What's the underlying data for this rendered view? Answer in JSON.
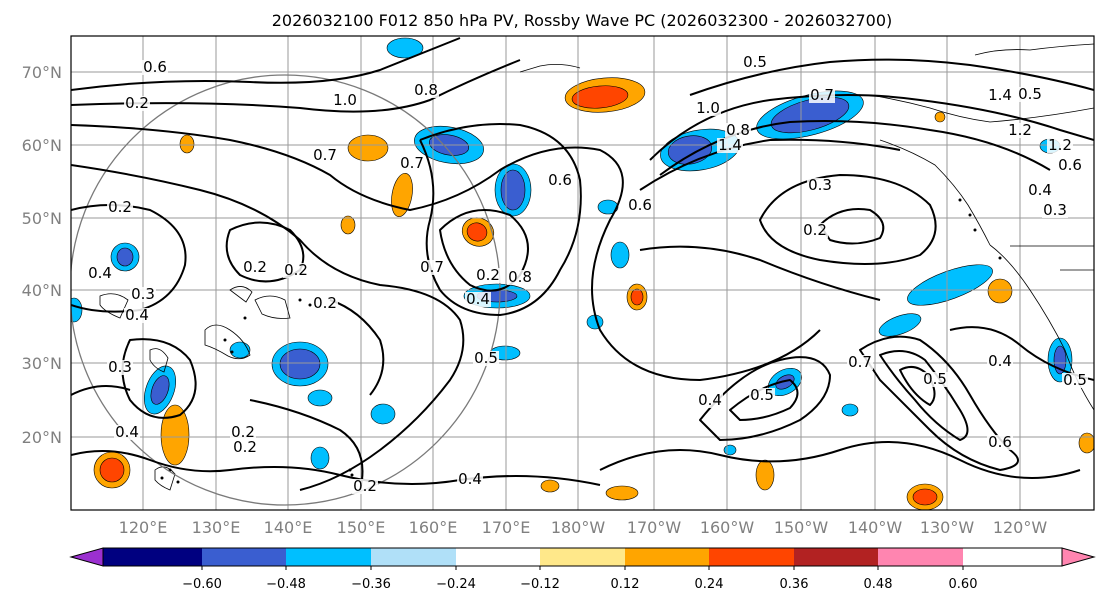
{
  "title": "2026032100 F012 850 hPa PV, Rossby Wave PC (2026032300 - 2026032700)",
  "lat_labels": [
    "70°N",
    "60°N",
    "50°N",
    "40°N",
    "30°N",
    "20°N"
  ],
  "lon_labels": [
    "120°E",
    "130°E",
    "140°E",
    "150°E",
    "160°E",
    "170°E",
    "180°W",
    "170°W",
    "160°W",
    "150°W",
    "140°W",
    "130°W",
    "120°W"
  ],
  "colorbar": {
    "ticks": [
      "−0.60",
      "−0.48",
      "−0.36",
      "−0.24",
      "−0.12",
      "0.12",
      "0.24",
      "0.36",
      "0.48",
      "0.60"
    ],
    "colors": [
      "#9b30d0",
      "#000080",
      "#3a5ed0",
      "#00bfff",
      "#b0e0f8",
      "#ffffff",
      "#ffe88a",
      "#ffa500",
      "#ff4500",
      "#b22222",
      "#ff85b0"
    ]
  },
  "contour_labels": [
    "0.6",
    "0.2",
    "1.0",
    "0.8",
    "0.5",
    "0.7",
    "1.0",
    "0.8",
    "1.4",
    "0.6",
    "0.3",
    "0.2",
    "0.6",
    "0.4",
    "0.3",
    "0.2",
    "0.2",
    "0.4",
    "0.2",
    "0.3",
    "0.4",
    "0.2",
    "0.8",
    "0.7",
    "0.4",
    "0.5",
    "0.2",
    "0.2",
    "0.2",
    "0.4",
    "0.7",
    "0.5",
    "0.4",
    "0.5",
    "0.6",
    "0.2",
    "0.5",
    "0.4",
    "1.2",
    "0.4",
    "0.3",
    "0.7",
    "0.7",
    "0.5",
    "1.4",
    "1.2",
    "0.6"
  ],
  "chart_data": {
    "type": "contour",
    "title": "2026032100 F012 850 hPa PV, Rossby Wave PC (2026032300 - 2026032700)",
    "lon_range": [
      "~112°E",
      "~115°W"
    ],
    "lat_range": [
      "~10°N",
      "~75°N"
    ],
    "fill_variable": "Rossby Wave PC",
    "fill_levels": [
      -0.6,
      -0.48,
      -0.36,
      -0.24,
      -0.12,
      0.12,
      0.24,
      0.36,
      0.48,
      0.6
    ],
    "contour_variable": "850 hPa PV",
    "contour_levels_labeled": [
      0.2,
      0.3,
      0.4,
      0.5,
      0.6,
      0.7,
      0.8,
      1.0,
      1.2,
      1.4
    ]
  }
}
